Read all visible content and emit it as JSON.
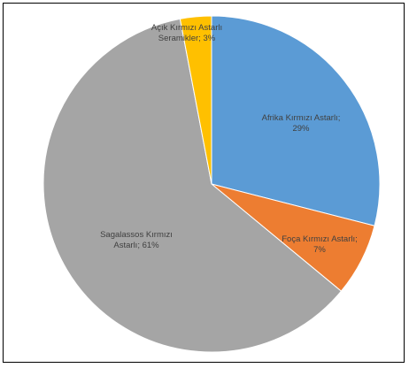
{
  "chart_data": {
    "type": "pie",
    "title": "",
    "slices": [
      {
        "label_lines": [
          "Afrika Kırmızı Astarlı;",
          "29%"
        ],
        "value": 29,
        "color": "#5b9bd5"
      },
      {
        "label_lines": [
          "Foça Kırmızı Astarlı;",
          "7%"
        ],
        "value": 7,
        "color": "#ed7d31"
      },
      {
        "label_lines": [
          "Sagalassos Kırmızı",
          "Astarlı; 61%"
        ],
        "value": 61,
        "color": "#a5a5a5"
      },
      {
        "label_lines": [
          "Açık Kırmızı Astarlı",
          "Seramikler; 3%"
        ],
        "value": 3,
        "color": "#ffc000"
      }
    ],
    "legend": "none",
    "start_angle": "12 o'clock",
    "direction": "clockwise"
  }
}
